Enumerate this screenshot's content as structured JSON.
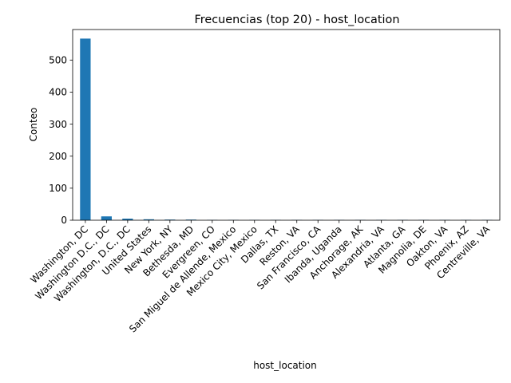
{
  "chart_data": {
    "type": "bar",
    "title": "Frecuencias (top 20) - host_location",
    "xlabel": "host_location",
    "ylabel": "Conteo",
    "categories": [
      "Washington, DC",
      "Washington D.C., DC",
      "Washington, D.C., DC",
      "United States",
      "New York, NY",
      "Bethesda, MD",
      "Evergreen, CO",
      "San Miguel de Allende, Mexico",
      "Mexico City, Mexico",
      "Dallas, TX",
      "Reston, VA",
      "San Francisco, CA",
      "Ibanda, Uganda",
      "Anchorage, AK",
      "Alexandria, VA",
      "Atlanta, GA",
      "Magnolia, DE",
      "Oakton, VA",
      "Phoenix, AZ",
      "Centreville, VA"
    ],
    "values": [
      567,
      12,
      5,
      3,
      2,
      2,
      1,
      1,
      1,
      1,
      1,
      1,
      1,
      1,
      1,
      1,
      1,
      1,
      1,
      1
    ],
    "ylim": [
      0,
      595.35
    ],
    "yticks": [
      "0",
      "100",
      "200",
      "300",
      "400",
      "500"
    ],
    "bar_color": "#1f77b4",
    "grid": false,
    "legend": "none"
  }
}
